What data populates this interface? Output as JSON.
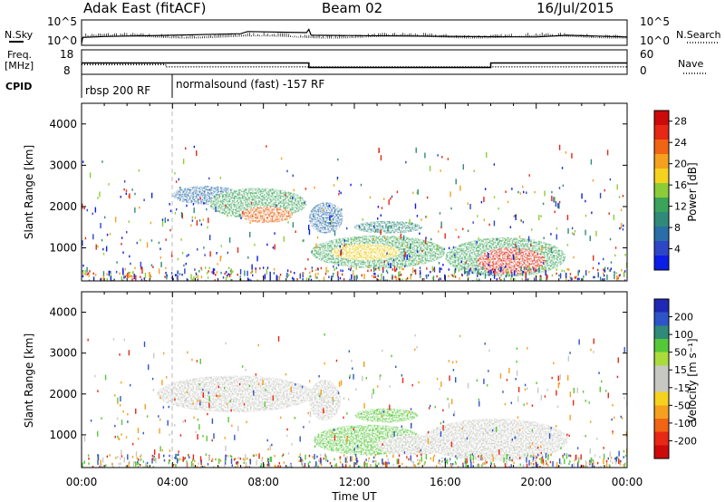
{
  "header": {
    "station": "Adak East (fitACF)",
    "beam": "Beam 02",
    "date": "16/Jul/2015"
  },
  "chart_data": [
    {
      "type": "line",
      "panel": "noise",
      "left_label": "N.Sky",
      "right_label": "N.Search",
      "left_ticks": [
        "10^5",
        "10^0"
      ],
      "right_ticks": [
        "10^5",
        "10^0"
      ],
      "x_hours": [
        0.0,
        0.05,
        1,
        4,
        7,
        7.3,
        9.9,
        10.0,
        10.1,
        16,
        20,
        21.4,
        24
      ],
      "y_norm": [
        0.0,
        0.28,
        0.32,
        0.38,
        0.45,
        0.55,
        0.5,
        0.65,
        0.38,
        0.33,
        0.3,
        0.38,
        0.3
      ]
    },
    {
      "type": "line",
      "panel": "frequency",
      "left_label_1": "Freq.",
      "left_label_2": "[MHz]",
      "right_label": "Nave",
      "left_ticks": [
        "18",
        "8"
      ],
      "right_ticks": [
        "60",
        "0"
      ],
      "freq_segments": [
        {
          "from": 0.0,
          "to": 10.0,
          "value": 12.8
        },
        {
          "from": 10.0,
          "to": 18.0,
          "value": 10.5
        },
        {
          "from": 18.0,
          "to": 24.0,
          "value": 12.8
        }
      ],
      "nave_segments": [
        {
          "from": 0.0,
          "to": 3.7,
          "value": 24
        },
        {
          "from": 3.7,
          "to": 24.0,
          "value": 17
        }
      ]
    },
    {
      "type": "table",
      "panel": "cpid",
      "label": "CPID",
      "entries": [
        {
          "start": 0.0,
          "text": "rbsp 200 RF"
        },
        {
          "start": 3.7,
          "text": "normalsound (fast) -157 RF"
        }
      ]
    },
    {
      "type": "heatmap",
      "panel": "power",
      "ylabel": "Slant Range [km]",
      "y_ticks": [
        "1000",
        "2000",
        "3000",
        "4000"
      ],
      "ylim": [
        200,
        4500
      ],
      "xlim": [
        0,
        24
      ],
      "colorbar_label": "Power [dB]",
      "colorbar_ticks": [
        "4",
        "8",
        "12",
        "16",
        "20",
        "24",
        "28"
      ],
      "colorbar_range": [
        0,
        30
      ],
      "colors": [
        "#0a1ee6",
        "#2d46c8",
        "#2a6ea8",
        "#2f8a7a",
        "#3aa45a",
        "#8ccd37",
        "#f5d21e",
        "#f5a01e",
        "#f06414",
        "#e62814",
        "#cd0a0a"
      ],
      "regions": [
        {
          "label": "echo_band_1",
          "t0": 4.0,
          "t1": 7.0,
          "r0": 2050,
          "r1": 2500,
          "value": 6
        },
        {
          "label": "echo_band_2",
          "t0": 5.6,
          "t1": 9.9,
          "r0": 1700,
          "r1": 2450,
          "value": 12
        },
        {
          "label": "echo_core_1",
          "t0": 7.0,
          "t1": 9.3,
          "r0": 1600,
          "r1": 2000,
          "value": 22
        },
        {
          "label": "echo_band_3",
          "t0": 10.0,
          "t1": 11.5,
          "r0": 1350,
          "r1": 2100,
          "value": 8
        },
        {
          "label": "echo_band_4",
          "t0": 12.0,
          "t1": 15.0,
          "r0": 1350,
          "r1": 1650,
          "value": 10
        },
        {
          "label": "echo_band_5",
          "t0": 10.1,
          "t1": 16.0,
          "r0": 500,
          "r1": 1300,
          "value": 12
        },
        {
          "label": "echo_core_2",
          "t0": 11.0,
          "t1": 14.0,
          "r0": 700,
          "r1": 1100,
          "value": 18
        },
        {
          "label": "echo_band_6",
          "t0": 16.0,
          "t1": 21.3,
          "r0": 300,
          "r1": 1250,
          "value": 12
        },
        {
          "label": "echo_core_3",
          "t0": 17.4,
          "t1": 20.4,
          "r0": 350,
          "r1": 1000,
          "value": 26
        }
      ]
    },
    {
      "type": "heatmap",
      "panel": "velocity",
      "ylabel": "Slant Range [km]",
      "y_ticks": [
        "1000",
        "2000",
        "3000",
        "4000"
      ],
      "ylim": [
        200,
        4500
      ],
      "xlim": [
        0,
        24
      ],
      "colorbar_label": "Velocity [m s⁻¹]",
      "colorbar_ticks": [
        "200",
        "100",
        "50",
        "15",
        "-15",
        "-50",
        "-100",
        "-200"
      ],
      "colors": [
        "#1e28b4",
        "#2d55c8",
        "#2f8a7a",
        "#55c837",
        "#aadc3c",
        "#c8c8c3",
        "#c8c8c3",
        "#f5d21e",
        "#f5a01e",
        "#f06414",
        "#e62814",
        "#cd0a0a"
      ],
      "regions": [
        {
          "label": "gray_band_1",
          "t0": 3.3,
          "t1": 10.2,
          "r0": 1550,
          "r1": 2450,
          "value": 0
        },
        {
          "label": "gray_band_2",
          "t0": 10.0,
          "t1": 11.4,
          "r0": 1350,
          "r1": 2350,
          "value": 0
        },
        {
          "label": "green_band_1",
          "t0": 12.0,
          "t1": 14.8,
          "r0": 1300,
          "r1": 1650,
          "value": 30
        },
        {
          "label": "green_band_2",
          "t0": 10.2,
          "t1": 15.0,
          "r0": 500,
          "r1": 1250,
          "value": 25
        },
        {
          "label": "gray_band_3",
          "t0": 13.0,
          "t1": 16.2,
          "r0": 500,
          "r1": 1000,
          "value": 0
        },
        {
          "label": "gray_band_4",
          "t0": 15.0,
          "t1": 21.4,
          "r0": 350,
          "r1": 1400,
          "value": 0
        }
      ]
    }
  ],
  "x_axis": {
    "ticks": [
      "00:00",
      "04:00",
      "08:00",
      "12:00",
      "16:00",
      "20:00",
      "00:00"
    ],
    "label": "Time UT"
  }
}
